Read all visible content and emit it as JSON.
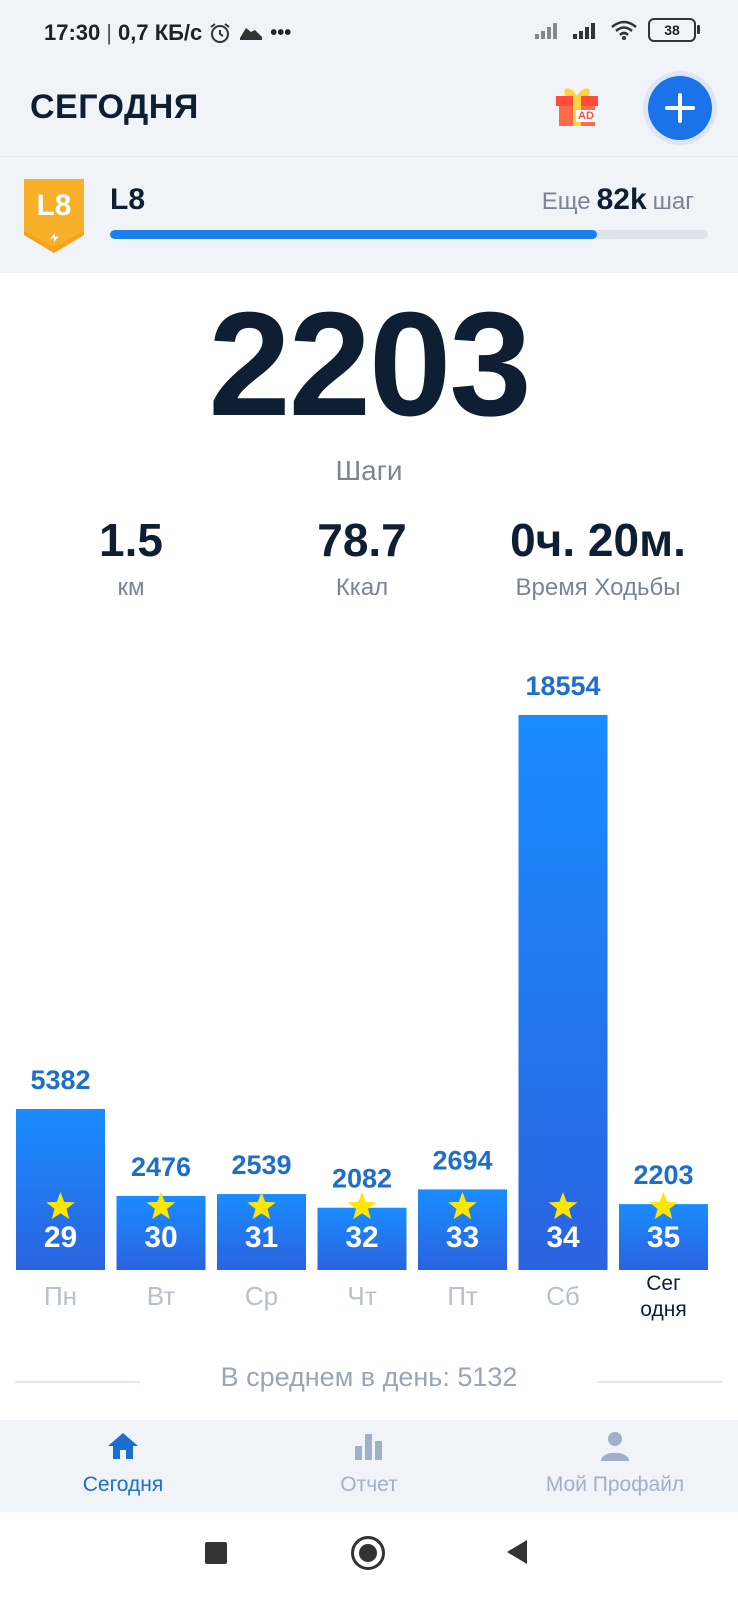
{
  "status_bar": {
    "time": "17:30",
    "speed": "0,7 КБ/с",
    "battery": "38"
  },
  "header": {
    "title": "СЕГОДНЯ",
    "gift_badge": "AD"
  },
  "level": {
    "badge_text": "L8",
    "name": "L8",
    "remain_prefix": "Еще",
    "remain_value": "82k",
    "remain_suffix": "шаг",
    "progress_fraction": 0.815
  },
  "today": {
    "steps": "2203",
    "steps_label": "Шаги",
    "stats": [
      {
        "value": "1.5",
        "label": "км"
      },
      {
        "value": "78.7",
        "label": "Ккал"
      },
      {
        "value": "0ч. 20м.",
        "label": "Время Ходьбы"
      }
    ]
  },
  "chart_data": {
    "type": "bar",
    "categories": [
      "Пн",
      "Вт",
      "Ср",
      "Чт",
      "Пт",
      "Сб",
      "Сег одня"
    ],
    "values": [
      5382,
      2476,
      2539,
      2082,
      2694,
      18554,
      2203
    ],
    "bar_badges": [
      "29",
      "30",
      "31",
      "32",
      "33",
      "34",
      "35"
    ],
    "highlight_index": 6,
    "colors": {
      "bar_top": "#1a8cff",
      "bar_bottom": "#2a63e0",
      "value_label": "#1d6fc9",
      "star": "#ffe600"
    }
  },
  "average": {
    "text": "В среднем в день: 5132"
  },
  "nav": {
    "items": [
      {
        "label": "Сегодня",
        "icon": "home-icon",
        "active": true
      },
      {
        "label": "Отчет",
        "icon": "bar-chart-icon",
        "active": false
      },
      {
        "label": "Мой Профайл",
        "icon": "person-icon",
        "active": false
      }
    ],
    "active_color": "#1a6fd1",
    "inactive_color": "#9fb0c8"
  }
}
